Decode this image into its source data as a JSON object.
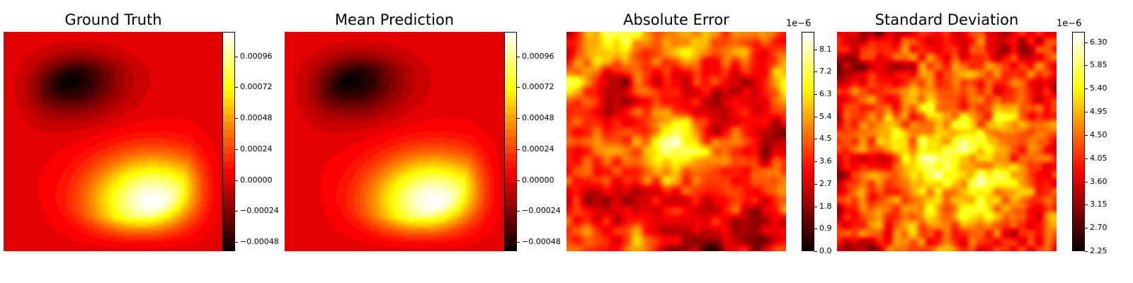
{
  "figure": {
    "background": "#ffffff"
  },
  "chart_data": [
    {
      "type": "heatmap",
      "title": "Ground Truth",
      "colormap": "hot",
      "field": "solution",
      "colorbar": {
        "ticks": [
          "−0.00048",
          "−0.00024",
          "0.00000",
          "0.00024",
          "0.00048",
          "0.00072",
          "0.00096"
        ],
        "tick_values": [
          -0.00048,
          -0.00024,
          0.0,
          0.00024,
          0.00048,
          0.00072,
          0.00096
        ],
        "range": [
          -0.00055,
          0.00115
        ],
        "offset_text": ""
      }
    },
    {
      "type": "heatmap",
      "title": "Mean Prediction",
      "colormap": "hot",
      "field": "solution",
      "colorbar": {
        "ticks": [
          "−0.00048",
          "−0.00024",
          "0.00000",
          "0.00024",
          "0.00048",
          "0.00072",
          "0.00096"
        ],
        "tick_values": [
          -0.00048,
          -0.00024,
          0.0,
          0.00024,
          0.00048,
          0.00072,
          0.00096
        ],
        "range": [
          -0.00055,
          0.00115
        ],
        "offset_text": ""
      }
    },
    {
      "type": "heatmap",
      "title": "Absolute Error",
      "colormap": "hot",
      "field": "noise-error",
      "colorbar": {
        "ticks": [
          "0.0",
          "0.9",
          "1.8",
          "2.7",
          "3.6",
          "4.5",
          "5.4",
          "6.3",
          "7.2",
          "8.1"
        ],
        "tick_values": [
          0.0,
          0.9,
          1.8,
          2.7,
          3.6,
          4.5,
          5.4,
          6.3,
          7.2,
          8.1
        ],
        "range": [
          0.0,
          8.8
        ],
        "offset_text": "1e−6"
      }
    },
    {
      "type": "heatmap",
      "title": "Standard Deviation",
      "colormap": "hot",
      "field": "noise-std",
      "colorbar": {
        "ticks": [
          "2.25",
          "2.70",
          "3.15",
          "3.60",
          "4.05",
          "4.50",
          "4.95",
          "5.40",
          "5.85",
          "6.30"
        ],
        "tick_values": [
          2.25,
          2.7,
          3.15,
          3.6,
          4.05,
          4.5,
          4.95,
          5.4,
          5.85,
          6.3
        ],
        "range": [
          2.25,
          6.5
        ],
        "offset_text": "1e−6"
      }
    }
  ]
}
